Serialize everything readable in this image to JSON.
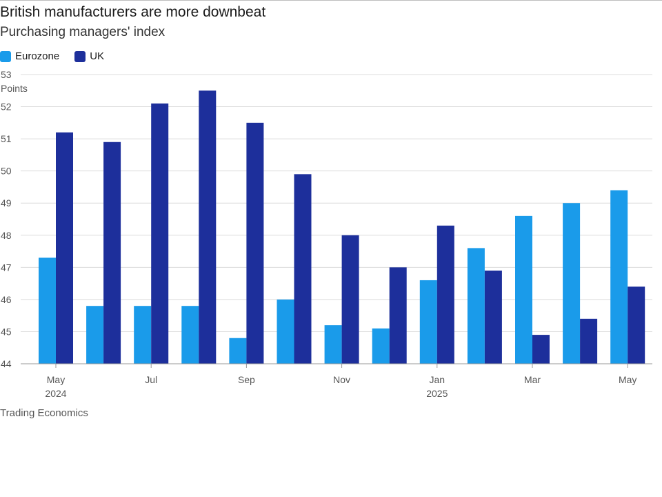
{
  "header": {
    "title": "British manufacturers are more downbeat",
    "subtitle": "Purchasing managers' index"
  },
  "source": "Trading Economics",
  "colors": {
    "eurozone": "#1a9bea",
    "uk": "#1d2f9b",
    "grid": "#dcdcdc",
    "axis": "#999999"
  },
  "chart_data": {
    "type": "bar",
    "title": "British manufacturers are more downbeat",
    "subtitle": "Purchasing managers' index",
    "ylabel": "Points",
    "ylim": [
      44,
      53
    ],
    "yticks": [
      44,
      45,
      46,
      47,
      48,
      49,
      50,
      51,
      52,
      53
    ],
    "grid": true,
    "legend_position": "top-left",
    "categories": [
      "May 2024",
      "Jun 2024",
      "Jul 2024",
      "Aug 2024",
      "Sep 2024",
      "Oct 2024",
      "Nov 2024",
      "Dec 2024",
      "Jan 2025",
      "Feb 2025",
      "Mar 2025",
      "Apr 2025",
      "May 2025"
    ],
    "x_tick_labels": [
      {
        "index": 0,
        "line1": "May",
        "line2": "2024"
      },
      {
        "index": 2,
        "line1": "Jul",
        "line2": ""
      },
      {
        "index": 4,
        "line1": "Sep",
        "line2": ""
      },
      {
        "index": 6,
        "line1": "Nov",
        "line2": ""
      },
      {
        "index": 8,
        "line1": "Jan",
        "line2": "2025"
      },
      {
        "index": 10,
        "line1": "Mar",
        "line2": ""
      },
      {
        "index": 12,
        "line1": "May",
        "line2": ""
      }
    ],
    "series": [
      {
        "name": "Eurozone",
        "values": [
          47.3,
          45.8,
          45.8,
          45.8,
          44.8,
          46.0,
          45.2,
          45.1,
          46.6,
          47.6,
          48.6,
          49.0,
          49.4
        ]
      },
      {
        "name": "UK",
        "values": [
          51.2,
          50.9,
          52.1,
          52.5,
          51.5,
          49.9,
          48.0,
          47.0,
          48.3,
          46.9,
          44.9,
          45.4,
          46.4
        ]
      }
    ]
  }
}
